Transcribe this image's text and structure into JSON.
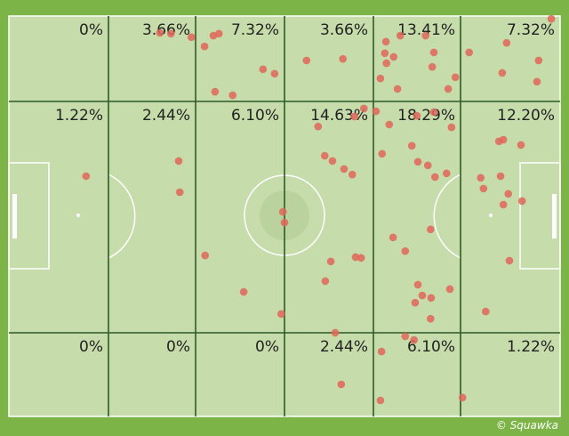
{
  "zones": [
    [
      "0%",
      "3.66%",
      "7.32%",
      "3.66%",
      "13.41%",
      "7.32%"
    ],
    [
      "1.22%",
      "2.44%",
      "6.10%",
      "14.63%",
      "18.29%",
      "12.20%"
    ],
    [
      "0%",
      "0%",
      "0%",
      "2.44%",
      "6.10%",
      "1.22%"
    ]
  ],
  "points": {
    "x": [
      27.4,
      29.4,
      33.1,
      37.1,
      38.1,
      35.5,
      46.1,
      48.2,
      37.4,
      40.6,
      54.0,
      60.6,
      68.4,
      71.0,
      75.6,
      77.1,
      68.2,
      69.8,
      68.5,
      76.8,
      81.0,
      67.4,
      70.5,
      79.7,
      83.5,
      90.3,
      98.4,
      96.1,
      89.5,
      95.8,
      14.0,
      30.8,
      31.0,
      35.6,
      42.6,
      49.4,
      49.7,
      50.0,
      64.4,
      62.7,
      56.1,
      57.3,
      58.7,
      60.8,
      62.3,
      62.9,
      63.9,
      58.4,
      57.4,
      66.6,
      69.0,
      74.0,
      77.1,
      80.3,
      67.7,
      73.1,
      74.2,
      76.0,
      77.3,
      79.4,
      69.7,
      76.5,
      71.9,
      74.2,
      75.0,
      76.6,
      80.0,
      76.5,
      73.7,
      85.6,
      86.1,
      88.9,
      89.7,
      92.9,
      89.2,
      90.6,
      93.1,
      89.7,
      90.8,
      86.5,
      59.2,
      60.3,
      67.6,
      67.4,
      71.9,
      73.5,
      82.3
    ],
    "y": [
      4.2,
      4.4,
      5.3,
      4.9,
      4.4,
      7.6,
      13.3,
      14.4,
      18.9,
      19.8,
      11.1,
      10.7,
      6.4,
      4.9,
      4.9,
      9.1,
      9.3,
      10.2,
      11.8,
      12.7,
      15.3,
      15.6,
      18.2,
      18.2,
      9.1,
      6.7,
      0.7,
      11.1,
      14.2,
      16.4,
      40.0,
      36.2,
      44.0,
      59.8,
      68.9,
      74.4,
      48.9,
      51.6,
      23.1,
      25.1,
      27.6,
      34.9,
      36.2,
      38.2,
      39.6,
      60.2,
      60.4,
      61.3,
      66.2,
      23.8,
      27.1,
      24.9,
      24.0,
      27.8,
      34.4,
      32.4,
      36.4,
      37.3,
      40.2,
      39.3,
      55.3,
      53.3,
      58.7,
      67.1,
      69.8,
      70.4,
      68.2,
      75.6,
      71.6,
      40.4,
      43.1,
      31.3,
      30.9,
      32.2,
      40.0,
      44.4,
      46.2,
      47.1,
      61.1,
      73.8,
      79.1,
      92.0,
      83.8,
      96.0,
      80.0,
      80.9,
      95.3
    ]
  },
  "credit": "© Squawka"
}
